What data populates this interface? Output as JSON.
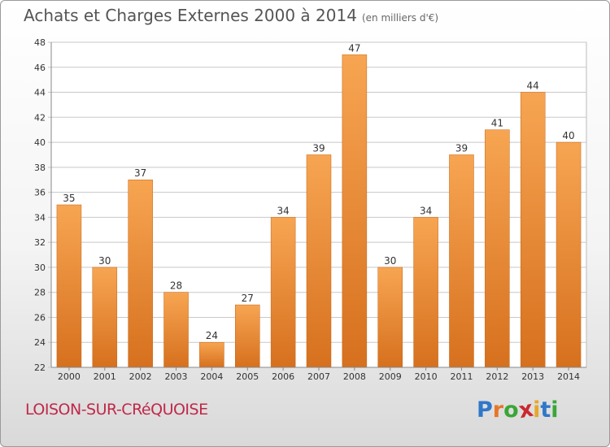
{
  "header": {
    "title": "Achats et Charges Externes 2000 à 2014",
    "unit": "(en milliers d'€)"
  },
  "footer": {
    "commune": "LOISON-SUR-CRéQUOISE",
    "brand": "Proxiti"
  },
  "brand_letters": [
    {
      "ch": "P",
      "color": "#2f77c9"
    },
    {
      "ch": "r",
      "color": "#e6762a"
    },
    {
      "ch": "o",
      "color": "#3aa637"
    },
    {
      "ch": "x",
      "color": "#c9292f"
    },
    {
      "ch": "i",
      "color": "#e6a72a"
    },
    {
      "ch": "t",
      "color": "#2f77c9"
    },
    {
      "ch": "i",
      "color": "#3aa637"
    }
  ],
  "colors": {
    "bar_top": "#f7a552",
    "bar_bottom": "#d6701e",
    "grid": "#c8c8c8",
    "text": "#333333"
  },
  "chart_data": {
    "type": "bar",
    "categories": [
      "2000",
      "2001",
      "2002",
      "2003",
      "2004",
      "2005",
      "2006",
      "2007",
      "2008",
      "2009",
      "2010",
      "2011",
      "2012",
      "2013",
      "2014"
    ],
    "values": [
      35,
      30,
      37,
      28,
      24,
      27,
      34,
      39,
      47,
      30,
      34,
      39,
      41,
      44,
      40
    ],
    "ylim": [
      22,
      48
    ],
    "yticks": [
      22,
      24,
      26,
      28,
      30,
      32,
      34,
      36,
      38,
      40,
      42,
      44,
      46,
      48
    ],
    "grid": true,
    "data_labels": true
  }
}
